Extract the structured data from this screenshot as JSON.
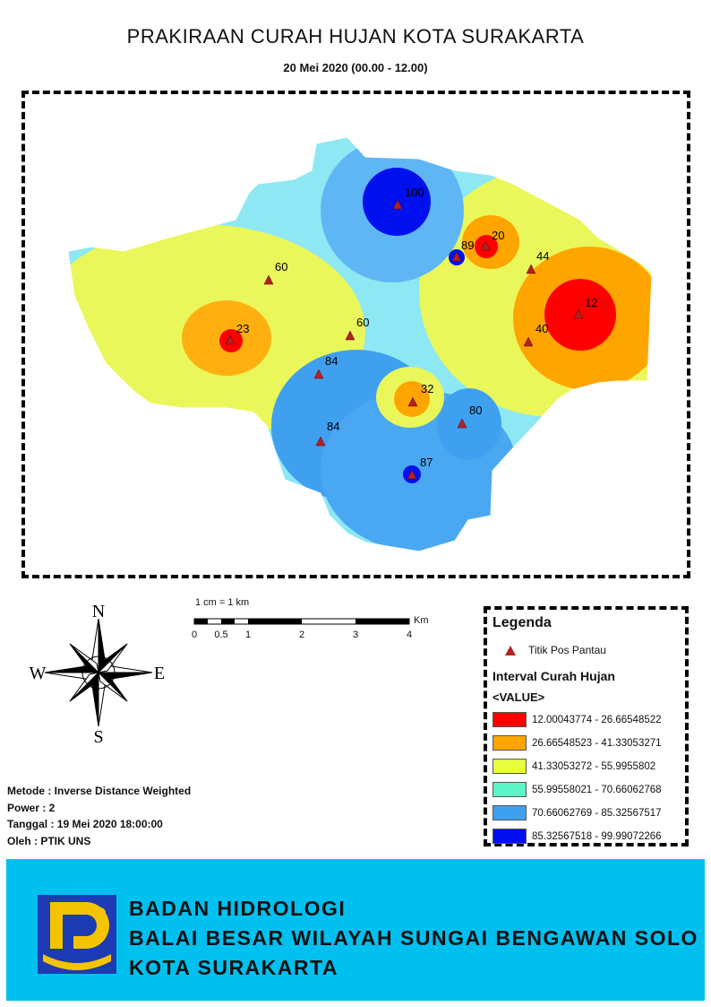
{
  "title": "PRAKIRAAN CURAH HUJAN KOTA SURAKARTA",
  "subtitle": "20 Mei 2020 (00.00 - 12.00)",
  "map": {
    "stations": [
      {
        "value": "100"
      },
      {
        "value": "89"
      },
      {
        "value": "20"
      },
      {
        "value": "44"
      },
      {
        "value": "60"
      },
      {
        "value": "12"
      },
      {
        "value": "23"
      },
      {
        "value": "60"
      },
      {
        "value": "40"
      },
      {
        "value": "84"
      },
      {
        "value": "32"
      },
      {
        "value": "80"
      },
      {
        "value": "84"
      },
      {
        "value": "87"
      }
    ]
  },
  "scale": {
    "label": "1 cm = 1 km",
    "unit": "Km",
    "ticks": [
      "0",
      "0.5",
      "1",
      "2",
      "3",
      "4"
    ]
  },
  "compass": {
    "n": "N",
    "s": "S",
    "e": "E",
    "w": "W"
  },
  "legend": {
    "title": "Legenda",
    "point_label": "Titik Pos Pantau",
    "interval_title": "Interval Curah Hujan",
    "field": "<VALUE>",
    "classes": [
      {
        "label": "12.00043774 - 26.66548522",
        "color": "#ff0000"
      },
      {
        "label": "26.66548523 - 41.33053271",
        "color": "#ffa500"
      },
      {
        "label": "41.33053272 - 55.9955802",
        "color": "#e6ff40"
      },
      {
        "label": "55.99558021 - 70.66062768",
        "color": "#5cf5c8"
      },
      {
        "label": "70.66062769 - 85.32567517",
        "color": "#3fa0f0"
      },
      {
        "label": "85.32567518 - 99.99072266",
        "color": "#0010ee"
      }
    ]
  },
  "meta": {
    "metode": "Metode : Inverse Distance Weighted",
    "power": "Power : 2",
    "tanggal": "Tanggal : 19 Mei 2020 18:00:00",
    "oleh": "Oleh : PTIK UNS"
  },
  "banner": {
    "line1": "BADAN HIDROLOGI",
    "line2": "BALAI BESAR WILAYAH SUNGAI BENGAWAN SOLO",
    "line3": "KOTA SURAKARTA"
  }
}
